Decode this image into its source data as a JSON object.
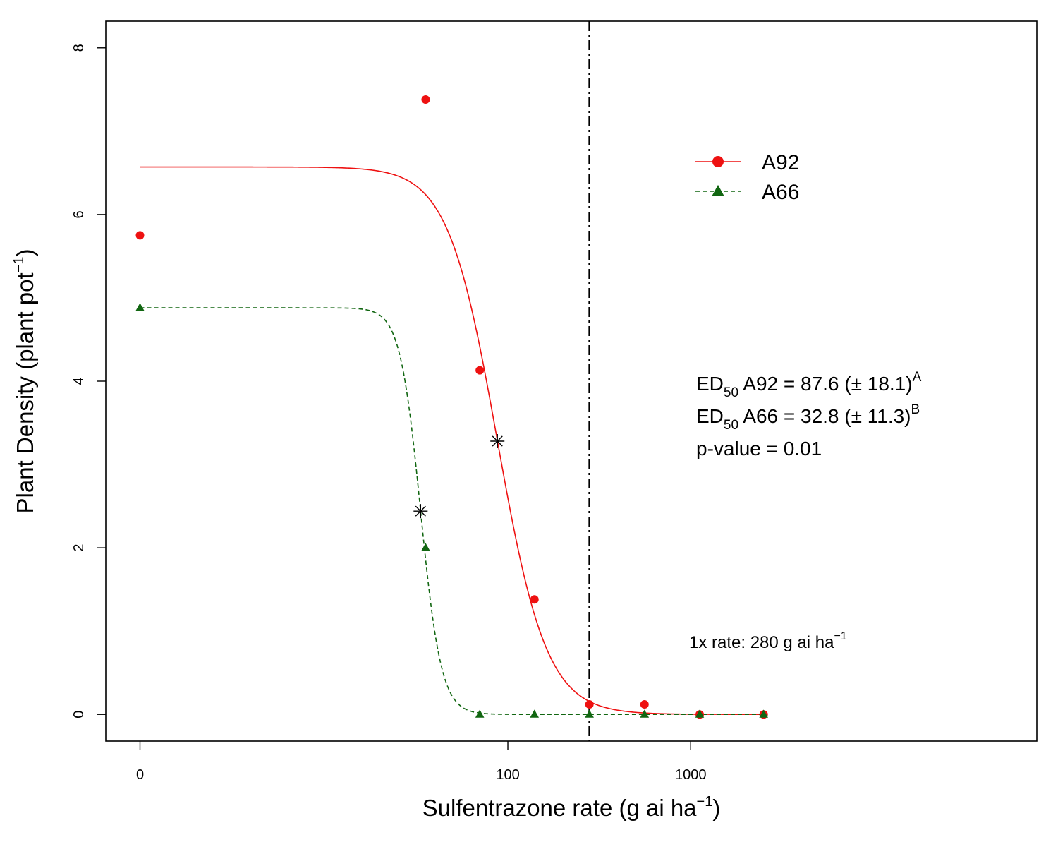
{
  "chart_data": {
    "type": "scatter",
    "x_scale": "log",
    "xlabel": "Sulfentrazone rate (g ai ha",
    "xlabel_sup": "−1",
    "xlabel_close": ")",
    "ylabel": "Plant Density (plant pot",
    "ylabel_sup": "−1",
    "ylabel_close": ")",
    "x_ticks": [
      {
        "value": 0,
        "label": "0"
      },
      {
        "value": 100,
        "label": "100"
      },
      {
        "value": 1000,
        "label": "1000"
      }
    ],
    "y_ticks": [
      {
        "value": 0,
        "label": "0"
      },
      {
        "value": 2,
        "label": "2"
      },
      {
        "value": 4,
        "label": "4"
      },
      {
        "value": 6,
        "label": "6"
      },
      {
        "value": 8,
        "label": "8"
      }
    ],
    "ylim": [
      -0.32,
      8.32
    ],
    "grid": false,
    "legend_position": "top-right",
    "series": [
      {
        "name": "A92",
        "color": "#ee1111",
        "marker": "circle",
        "line_style": "solid",
        "points": [
          {
            "x": 0,
            "y": 5.75
          },
          {
            "x": 35,
            "y": 7.38
          },
          {
            "x": 70,
            "y": 4.13
          },
          {
            "x": 140,
            "y": 1.38
          },
          {
            "x": 280,
            "y": 0.12
          },
          {
            "x": 560,
            "y": 0.12
          },
          {
            "x": 1120,
            "y": 0.0
          },
          {
            "x": 2500,
            "y": 0.0
          }
        ],
        "fit": {
          "upper": 6.57,
          "ed50": 87.6,
          "slope": 3.2
        },
        "ed50_marker": {
          "x": 87.6,
          "y": 3.28
        }
      },
      {
        "name": "A66",
        "color": "#116611",
        "marker": "triangle",
        "line_style": "dashed",
        "points": [
          {
            "x": 0,
            "y": 4.88
          },
          {
            "x": 35,
            "y": 2.0
          },
          {
            "x": 70,
            "y": 0.0
          },
          {
            "x": 140,
            "y": 0.0
          },
          {
            "x": 280,
            "y": 0.0
          },
          {
            "x": 560,
            "y": 0.0
          },
          {
            "x": 1120,
            "y": 0.0
          },
          {
            "x": 2500,
            "y": 0.0
          }
        ],
        "fit": {
          "upper": 4.88,
          "ed50": 32.8,
          "slope": 7.5
        },
        "ed50_marker": {
          "x": 32.8,
          "y": 2.44
        }
      }
    ],
    "reference_line": {
      "x": 280,
      "style": "dash-dot"
    },
    "annotations": {
      "rate_note": "1x rate: 280 g ai ha",
      "rate_note_sup": "−1",
      "stats": [
        {
          "prefix": "ED",
          "sub": "50",
          "text": " A92 = 87.6 (± 18.1)",
          "sup": "A"
        },
        {
          "prefix": "ED",
          "sub": "50",
          "text": " A66 = 32.8 (± 11.3)",
          "sup": "B"
        },
        {
          "prefix": "",
          "sub": "",
          "text": "p-value = 0.01",
          "sup": ""
        }
      ]
    }
  }
}
